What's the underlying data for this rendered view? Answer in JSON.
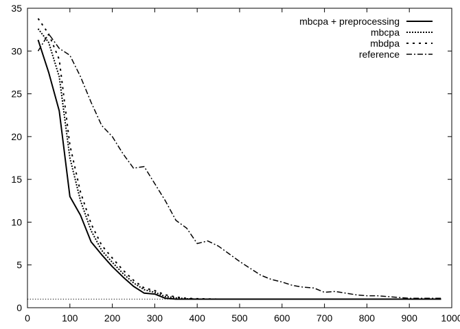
{
  "chart_data": {
    "type": "line",
    "title": "",
    "xlabel": "",
    "ylabel": "",
    "xlim": [
      0,
      1000
    ],
    "ylim": [
      0,
      35
    ],
    "xticks": [
      0,
      100,
      200,
      300,
      400,
      500,
      600,
      700,
      800,
      900,
      1000
    ],
    "yticks": [
      0,
      5,
      10,
      15,
      20,
      25,
      30,
      35
    ],
    "grid": false,
    "legend_position": "top-right",
    "reference_line": {
      "y": 1,
      "x_start": 0,
      "x_end": 975
    },
    "series": [
      {
        "name": "mbcpa + preprocessing",
        "style": "solid",
        "x": [
          25,
          50,
          75,
          100,
          125,
          150,
          175,
          200,
          225,
          250,
          275,
          300,
          325,
          350,
          375,
          400,
          450,
          500,
          600,
          700,
          800,
          900,
          975
        ],
        "y": [
          31.3,
          27.5,
          23.0,
          13.0,
          10.8,
          7.7,
          6.2,
          4.8,
          3.6,
          2.5,
          1.7,
          1.6,
          1.1,
          1.0,
          1.0,
          1.0,
          1.0,
          1.0,
          1.0,
          1.0,
          1.0,
          1.0,
          1.0
        ]
      },
      {
        "name": "mbcpa",
        "style": "dotted",
        "x": [
          25,
          50,
          75,
          100,
          125,
          150,
          175,
          200,
          225,
          250,
          275,
          300,
          325,
          350,
          375,
          400,
          450,
          500,
          600,
          700,
          800,
          900,
          975
        ],
        "y": [
          32.6,
          31.0,
          27.0,
          17.5,
          12.5,
          9.0,
          6.7,
          5.3,
          4.0,
          2.9,
          2.1,
          1.8,
          1.3,
          1.15,
          1.05,
          1.0,
          1.0,
          1.0,
          1.0,
          1.0,
          1.0,
          1.0,
          1.0
        ]
      },
      {
        "name": "mbdpa",
        "style": "dashed",
        "x": [
          25,
          50,
          75,
          100,
          125,
          150,
          175,
          200,
          225,
          250,
          275,
          300,
          325,
          350,
          375,
          400,
          450,
          500,
          600,
          700,
          800,
          900,
          975
        ],
        "y": [
          33.8,
          32.0,
          29.0,
          19.0,
          13.5,
          9.8,
          7.3,
          5.8,
          4.4,
          3.2,
          2.3,
          2.0,
          1.5,
          1.25,
          1.1,
          1.05,
          1.0,
          1.0,
          1.0,
          1.0,
          1.0,
          1.0,
          1.0
        ]
      },
      {
        "name": "reference",
        "style": "dashdot",
        "x": [
          25,
          50,
          75,
          100,
          125,
          150,
          175,
          200,
          225,
          250,
          275,
          300,
          325,
          350,
          375,
          400,
          425,
          450,
          475,
          500,
          525,
          550,
          575,
          600,
          625,
          650,
          675,
          700,
          725,
          750,
          775,
          800,
          825,
          850,
          875,
          900,
          925,
          950,
          975
        ],
        "y": [
          30.0,
          32.0,
          30.3,
          29.5,
          27.0,
          24.0,
          21.3,
          20.0,
          18.0,
          16.3,
          16.5,
          14.5,
          12.5,
          10.2,
          9.3,
          7.5,
          7.8,
          7.2,
          6.3,
          5.4,
          4.6,
          3.8,
          3.3,
          3.0,
          2.6,
          2.4,
          2.3,
          1.8,
          1.9,
          1.7,
          1.5,
          1.4,
          1.4,
          1.3,
          1.2,
          1.1,
          1.1,
          1.1,
          1.1
        ]
      }
    ]
  }
}
